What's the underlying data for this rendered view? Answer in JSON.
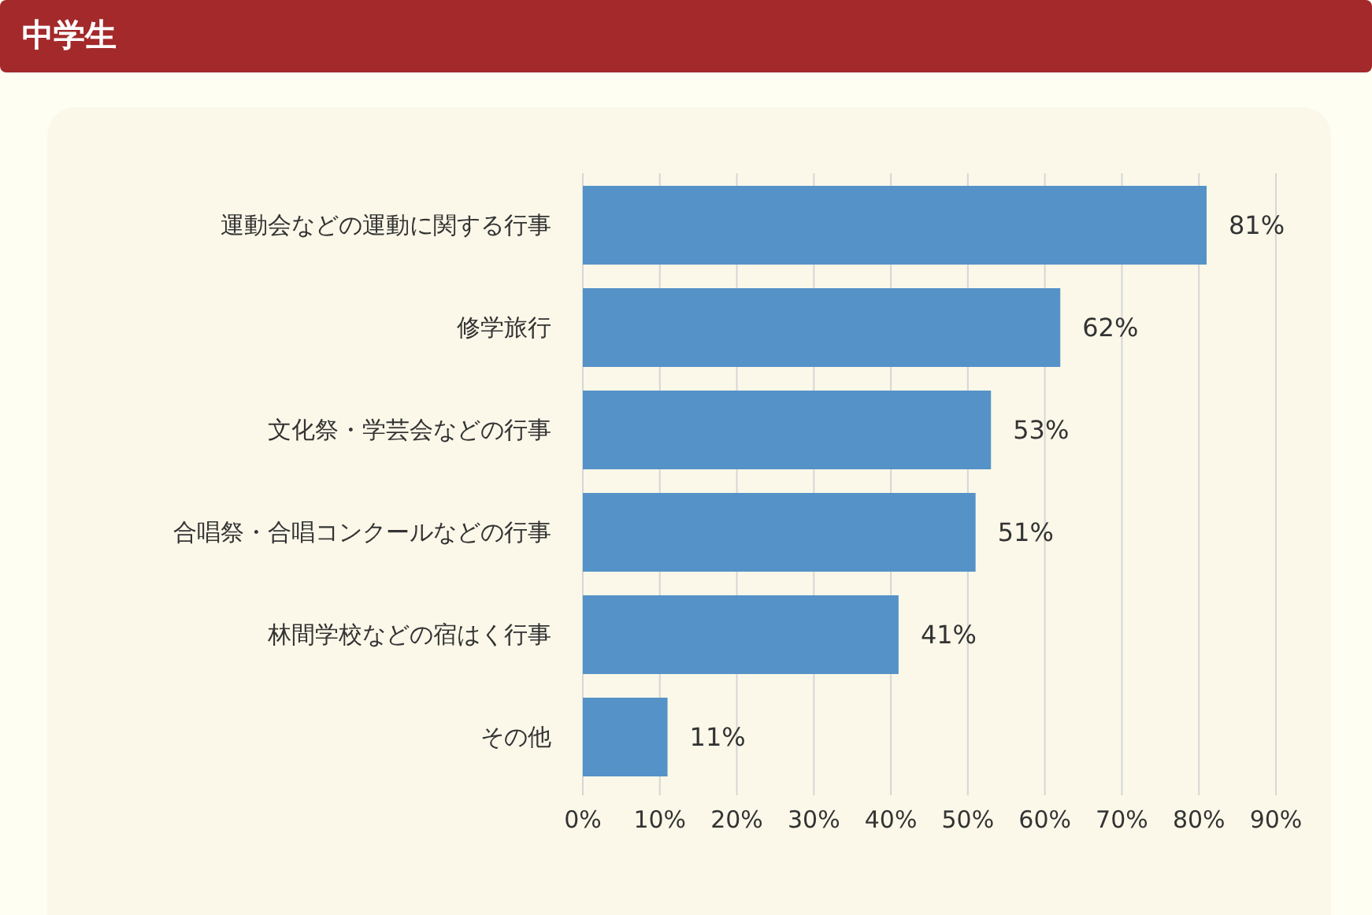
{
  "chart_data": {
    "type": "bar",
    "orientation": "horizontal",
    "title": "中学生",
    "categories": [
      "運動会などの運動に関する行事",
      "修学旅行",
      "文化祭・学芸会などの行事",
      "合唱祭・合唱コンクールなどの行事",
      "林間学校などの宿はく行事",
      "その他"
    ],
    "values": [
      81,
      62,
      53,
      51,
      41,
      11
    ],
    "value_labels": [
      "81%",
      "62%",
      "53%",
      "51%",
      "41%",
      "11%"
    ],
    "color": "#5592c8",
    "xlim": [
      0,
      90
    ],
    "xticks": [
      {
        "value": 0,
        "label": "0%"
      },
      {
        "value": 10,
        "label": "10%"
      },
      {
        "value": 20,
        "label": "20%"
      },
      {
        "value": 30,
        "label": "30%"
      },
      {
        "value": 40,
        "label": "40%"
      },
      {
        "value": 50,
        "label": "50%"
      },
      {
        "value": 60,
        "label": "60%"
      },
      {
        "value": 70,
        "label": "70%"
      },
      {
        "value": 80,
        "label": "80%"
      },
      {
        "value": 90,
        "label": "90%"
      }
    ],
    "grid": "x"
  }
}
